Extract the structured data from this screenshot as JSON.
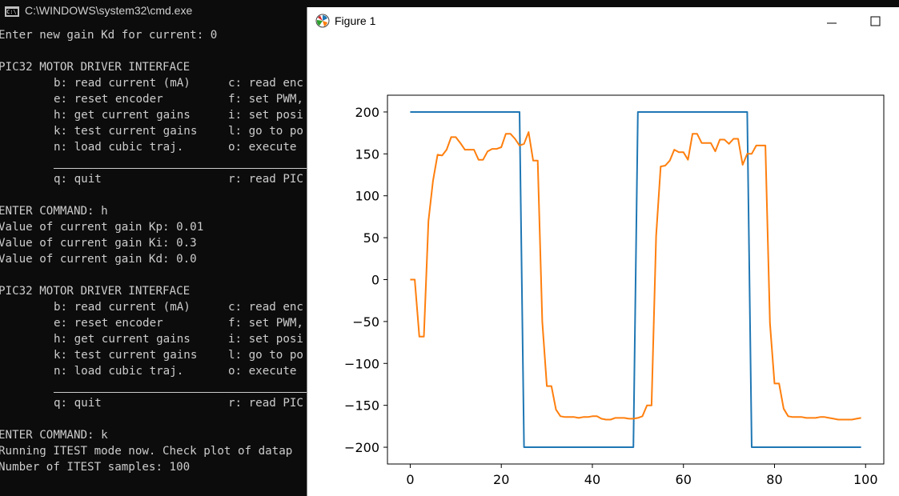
{
  "cmd": {
    "title": "C:\\WINDOWS\\system32\\cmd.exe",
    "icon_text": "C:\\",
    "lines": {
      "l1": "Enter new gain Kd for current: 0",
      "l2": "PIC32 MOTOR DRIVER INTERFACE",
      "l3a": "b: read current (mA)",
      "l3b": "c: read enc",
      "l4a": "e: reset encoder",
      "l4b": "f: set PWM,",
      "l5a": "h: get current gains",
      "l5b": "i: set posi",
      "l6a": "k: test current gains",
      "l6b": "l: go to po",
      "l7a": "n: load cubic traj.",
      "l7b": "o: execute",
      "l8a": "q: quit",
      "l8b": "r: read PIC",
      "l9": "ENTER COMMAND: h",
      "l10": "Value of current gain Kp: 0.01",
      "l11": "Value of current gain Ki: 0.3",
      "l12": "Value of current gain Kd: 0.0",
      "l13": "PIC32 MOTOR DRIVER INTERFACE",
      "l14a": "b: read current (mA)",
      "l14b": "c: read enc",
      "l15a": "e: reset encoder",
      "l15b": "f: set PWM,",
      "l16a": "h: get current gains",
      "l16b": "i: set posi",
      "l17a": "k: test current gains",
      "l17b": "l: go to po",
      "l18a": "n: load cubic traj.",
      "l18b": "o: execute",
      "l19a": "q: quit",
      "l19b": "r: read PIC",
      "l20": "ENTER COMMAND: k",
      "l21": "Running ITEST mode now. Check plot of datap",
      "l22": "Number of ITEST samples: 100"
    }
  },
  "figure": {
    "title": "Figure 1",
    "minimize_label": "—",
    "maximize_label": "☐"
  },
  "chart_data": {
    "type": "line",
    "title": "",
    "xlabel": "",
    "ylabel": "",
    "xlim": [
      -5,
      104
    ],
    "ylim": [
      -220,
      220
    ],
    "xticks": [
      0,
      20,
      40,
      60,
      80,
      100
    ],
    "yticks": [
      -200,
      -150,
      -100,
      -50,
      0,
      50,
      100,
      150,
      200
    ],
    "ytick_labels": [
      "−200",
      "−150",
      "−100",
      "−50",
      "0",
      "50",
      "100",
      "150",
      "200"
    ],
    "grid": false,
    "series": [
      {
        "color": "#1f77b4",
        "x": [
          0,
          24,
          25,
          49,
          50,
          74,
          75,
          99
        ],
        "y": [
          200,
          200,
          -200,
          -200,
          200,
          200,
          -200,
          -200
        ]
      },
      {
        "color": "#ff7f0e",
        "x": [
          0,
          1,
          2,
          3,
          4,
          5,
          6,
          7,
          8,
          9,
          10,
          11,
          12,
          13,
          14,
          15,
          16,
          17,
          18,
          19,
          20,
          21,
          22,
          23,
          24,
          25,
          26,
          27,
          28,
          29,
          30,
          31,
          32,
          33,
          34,
          35,
          36,
          37,
          38,
          39,
          40,
          41,
          42,
          43,
          44,
          45,
          46,
          47,
          48,
          49,
          50,
          51,
          52,
          53,
          54,
          55,
          56,
          57,
          58,
          59,
          60,
          61,
          62,
          63,
          64,
          65,
          66,
          67,
          68,
          69,
          70,
          71,
          72,
          73,
          74,
          75,
          76,
          77,
          78,
          79,
          80,
          81,
          82,
          83,
          84,
          85,
          86,
          87,
          88,
          89,
          90,
          91,
          92,
          93,
          94,
          95,
          96,
          97,
          98,
          99
        ],
        "y": [
          0,
          0,
          -68,
          -68,
          70,
          118,
          149,
          148,
          155,
          170,
          170,
          163,
          155,
          155,
          155,
          143,
          143,
          153,
          156,
          156,
          158,
          174,
          174,
          168,
          160,
          162,
          176,
          142,
          142,
          -50,
          -127,
          -127,
          -155,
          -163,
          -164,
          -164,
          -164,
          -165,
          -164,
          -164,
          -163,
          -163,
          -166,
          -167,
          -167,
          -165,
          -165,
          -165,
          -166,
          -166,
          -165,
          -163,
          -150,
          -150,
          52,
          135,
          136,
          142,
          155,
          152,
          152,
          143,
          174,
          174,
          163,
          163,
          163,
          153,
          167,
          167,
          162,
          168,
          168,
          137,
          150,
          150,
          160,
          160,
          160,
          -52,
          -124,
          -124,
          -154,
          -163,
          -164,
          -164,
          -164,
          -165,
          -165,
          -165,
          -164,
          -164,
          -165,
          -166,
          -167,
          -167,
          -167,
          -167,
          -166,
          -165
        ]
      }
    ]
  }
}
